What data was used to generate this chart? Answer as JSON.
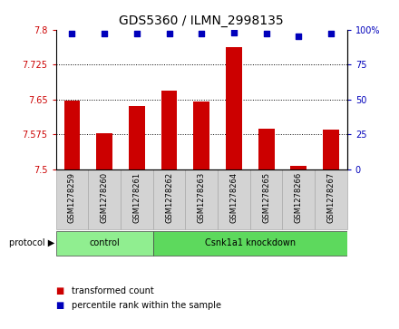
{
  "title": "GDS5360 / ILMN_2998135",
  "samples": [
    "GSM1278259",
    "GSM1278260",
    "GSM1278261",
    "GSM1278262",
    "GSM1278263",
    "GSM1278264",
    "GSM1278265",
    "GSM1278266",
    "GSM1278267"
  ],
  "transformed_count": [
    7.648,
    7.578,
    7.635,
    7.668,
    7.645,
    7.762,
    7.588,
    7.508,
    7.585
  ],
  "percentile_rank": [
    97,
    97,
    97,
    97,
    97,
    98,
    97,
    95,
    97
  ],
  "groups": [
    {
      "label": "control",
      "start": 0,
      "end": 2,
      "color": "#90EE90"
    },
    {
      "label": "Csnk1a1 knockdown",
      "start": 3,
      "end": 8,
      "color": "#5DD95D"
    }
  ],
  "ylim_left": [
    7.5,
    7.8
  ],
  "ylim_right": [
    0,
    100
  ],
  "yticks_left": [
    7.5,
    7.575,
    7.65,
    7.725,
    7.8
  ],
  "ytick_labels_left": [
    "7.5",
    "7.575",
    "7.65",
    "7.725",
    "7.8"
  ],
  "yticks_right": [
    0,
    25,
    50,
    75,
    100
  ],
  "ytick_labels_right": [
    "0",
    "25",
    "50",
    "75",
    "100%"
  ],
  "bar_color": "#cc0000",
  "dot_color": "#0000bb",
  "bar_width": 0.5,
  "background_color": "#ffffff",
  "label_box_color": "#d3d3d3",
  "protocol_label": "protocol",
  "legend_items": [
    {
      "label": "transformed count",
      "color": "#cc0000"
    },
    {
      "label": "percentile rank within the sample",
      "color": "#0000bb"
    }
  ]
}
